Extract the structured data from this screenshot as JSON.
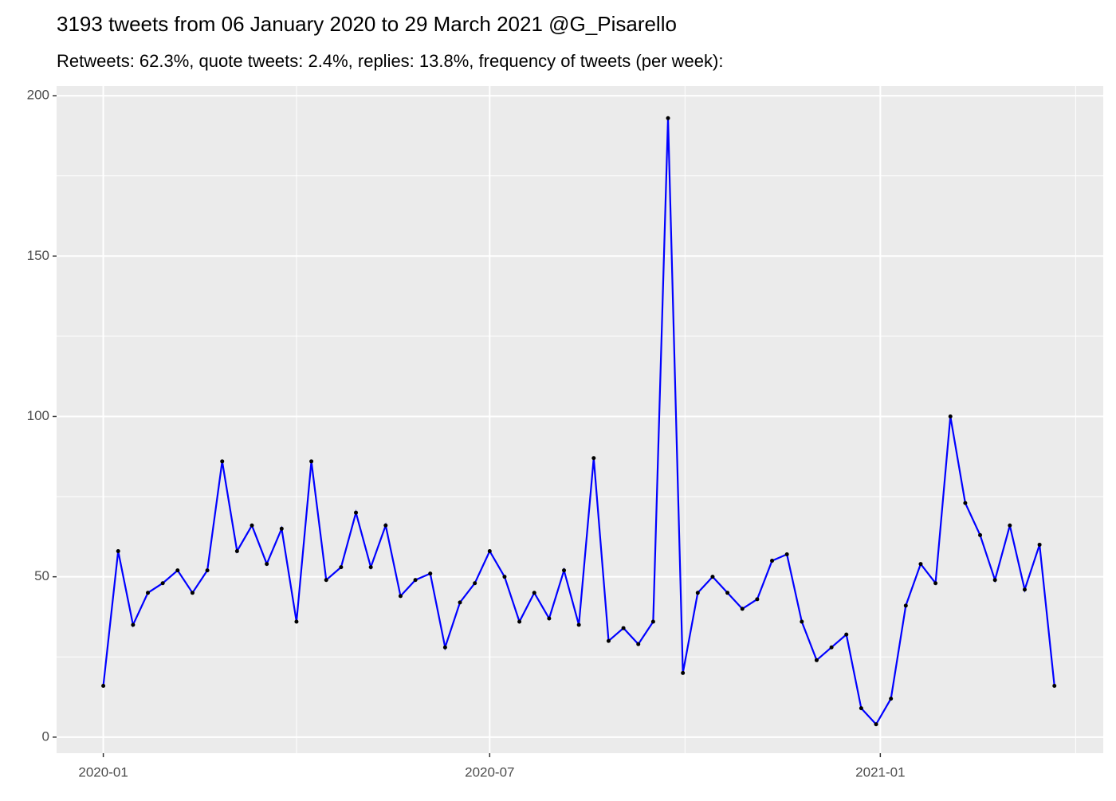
{
  "chart_data": {
    "type": "line",
    "title": "3193 tweets from 06 January 2020 to 29 March 2021 @G_Pisarello",
    "subtitle": "Retweets: 62.3%, quote tweets: 2.4%, replies: 13.8%, frequency of tweets (per week):",
    "x": [
      "2020-01-01",
      "2020-01-08",
      "2020-01-15",
      "2020-01-22",
      "2020-01-29",
      "2020-02-05",
      "2020-02-12",
      "2020-02-19",
      "2020-02-26",
      "2020-03-04",
      "2020-03-11",
      "2020-03-18",
      "2020-03-25",
      "2020-04-01",
      "2020-04-08",
      "2020-04-15",
      "2020-04-22",
      "2020-04-29",
      "2020-05-06",
      "2020-05-13",
      "2020-05-20",
      "2020-05-27",
      "2020-06-03",
      "2020-06-10",
      "2020-06-17",
      "2020-06-24",
      "2020-07-01",
      "2020-07-08",
      "2020-07-15",
      "2020-07-22",
      "2020-07-29",
      "2020-08-05",
      "2020-08-12",
      "2020-08-19",
      "2020-08-26",
      "2020-09-02",
      "2020-09-09",
      "2020-09-16",
      "2020-09-23",
      "2020-09-30",
      "2020-10-07",
      "2020-10-14",
      "2020-10-21",
      "2020-10-28",
      "2020-11-04",
      "2020-11-11",
      "2020-11-18",
      "2020-11-25",
      "2020-12-02",
      "2020-12-09",
      "2020-12-16",
      "2020-12-23",
      "2020-12-30",
      "2021-01-06",
      "2021-01-13",
      "2021-01-20",
      "2021-01-27",
      "2021-02-03",
      "2021-02-10",
      "2021-02-17",
      "2021-02-24",
      "2021-03-03",
      "2021-03-10",
      "2021-03-17",
      "2021-03-24"
    ],
    "values": [
      16,
      58,
      35,
      45,
      48,
      52,
      45,
      52,
      86,
      58,
      66,
      54,
      65,
      36,
      86,
      49,
      53,
      70,
      53,
      66,
      44,
      49,
      51,
      28,
      42,
      48,
      58,
      50,
      36,
      45,
      37,
      52,
      35,
      87,
      30,
      34,
      29,
      36,
      193,
      20,
      45,
      50,
      45,
      40,
      43,
      55,
      57,
      36,
      24,
      28,
      32,
      9,
      4,
      12,
      41,
      54,
      48,
      100,
      73,
      63,
      49,
      66,
      46,
      60,
      16
    ],
    "line_color": "#0000ff",
    "point_color": "#000000",
    "xlim": [
      "2019-12-10",
      "2021-04-16"
    ],
    "xticks": [
      {
        "value": "2020-01-01",
        "label": "2020-01"
      },
      {
        "value": "2020-07-01",
        "label": "2020-07"
      },
      {
        "value": "2021-01-01",
        "label": "2021-01"
      }
    ],
    "ylim": [
      -5,
      203
    ],
    "yticks": [
      0,
      50,
      100,
      150,
      200
    ],
    "grid": true
  }
}
